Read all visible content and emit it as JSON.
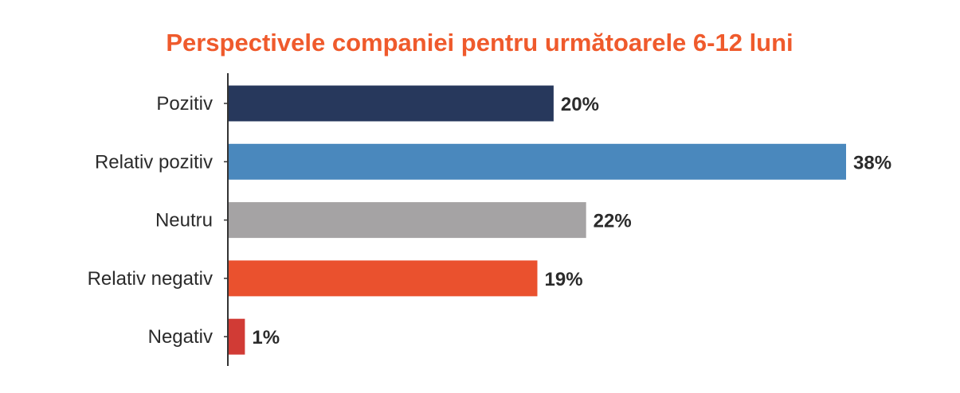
{
  "chart_data": {
    "type": "bar",
    "orientation": "horizontal",
    "title": "Perspectivele companiei pentru următoarele 6-12 luni",
    "categories": [
      "Pozitiv",
      "Relativ pozitiv",
      "Neutru",
      "Relativ negativ",
      "Negativ"
    ],
    "values": [
      20,
      38,
      22,
      19,
      1
    ],
    "value_labels": [
      "20%",
      "38%",
      "22%",
      "19%",
      "1%"
    ],
    "unit": "%",
    "xlim": [
      0,
      38
    ],
    "grid": false,
    "legend": "none",
    "colors": [
      "#27385c",
      "#4a88bd",
      "#a5a3a4",
      "#ea512e",
      "#d13b35"
    ],
    "title_color": "#ef5a2c"
  }
}
